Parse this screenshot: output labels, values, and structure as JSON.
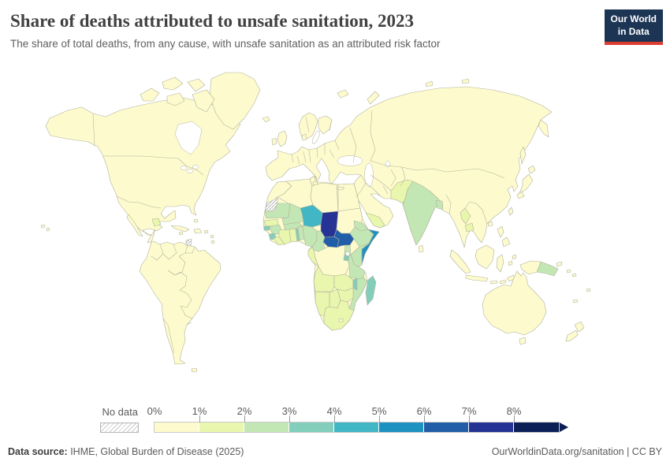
{
  "header": {
    "title": "Share of deaths attributed to unsafe sanitation, 2023",
    "subtitle": "The share of total deaths, from any cause, with unsafe sanitation as an attributed risk factor",
    "logo": {
      "line1": "Our World",
      "line2": "in Data",
      "bg_color": "#1d3554",
      "accent_color": "#dc3c31"
    }
  },
  "legend": {
    "no_data_label": "No data",
    "ticks": [
      "0%",
      "1%",
      "2%",
      "3%",
      "4%",
      "5%",
      "6%",
      "7%",
      "8%"
    ],
    "band_colors": [
      "#fdfbcd",
      "#e9f6ad",
      "#c3e7b4",
      "#82cebb",
      "#41b6c4",
      "#1d91c0",
      "#225ea8",
      "#253494",
      "#0b1f56"
    ],
    "arrow_color": "#0b1f56"
  },
  "footer": {
    "source_label": "Data source:",
    "source_text": " IHME, Global Burden of Disease (2025)",
    "right_text": "OurWorldinData.org/sanitation | CC BY"
  },
  "chart_data": {
    "type": "heatmap",
    "title": "Share of deaths attributed to unsafe sanitation, 2023",
    "subtitle": "The share of total deaths, from any cause, with unsafe sanitation as an attributed risk factor",
    "legend_bins": [
      "0-1%",
      "1-2%",
      "2-3%",
      "3-4%",
      "4-5%",
      "5-6%",
      "6-7%",
      "7-8%",
      "8%+"
    ],
    "legend_position": "bottom",
    "highlighted_values_bin_by_country": {
      "chad": "7-8%",
      "central-african-republic": "6-7%",
      "south-sudan": "6-7%",
      "somalia": "5-6%",
      "niger": "4-5%",
      "madagascar": "3-4%",
      "malawi": "3-4%",
      "sierra-leone": "3-4%",
      "togo": "3-4%",
      "guinea-bissau": "3-4%",
      "rwanda-burundi": "3-4%",
      "mauritania": "2-3%",
      "mali": "2-3%",
      "burkina-faso": "2-3%",
      "guinea": "2-3%",
      "benin": "2-3%",
      "nigeria": "2-3%",
      "cameroon": "2-3%",
      "eritrea": "2-3%",
      "ethiopia": "2-3%",
      "kenya": "2-3%",
      "uganda": "2-3%",
      "tanzania": "2-3%",
      "mozambique": "2-3%",
      "india": "2-3%",
      "bangladesh": "2-3%",
      "papua-new-guinea": "2-3%",
      "senegal": "1-2%",
      "liberia": "1-2%",
      "cote-divoire": "1-2%",
      "ghana": "1-2%",
      "congo-gabon": "1-2%",
      "angola": "1-2%",
      "zambia": "1-2%",
      "zimbabwe": "1-2%",
      "botswana": "1-2%",
      "namibia": "1-2%",
      "south-africa": "1-2%",
      "pakistan": "1-2%",
      "laos": "1-2%",
      "cambodia": "1-2%",
      "yemen": "1-2%",
      "guatemala": "1-2%",
      "rest-of-world": "0-1%",
      "western-sahara": "No data",
      "french-guiana": "No data"
    }
  },
  "map": {
    "default_band": 0,
    "border_color": "#b1b19e",
    "countries": {
      "chad": 7,
      "central-african-republic": 6,
      "south-sudan": 6,
      "somalia": 5,
      "niger": 4,
      "madagascar": 3,
      "malawi": 3,
      "sierra-leone": 3,
      "togo": 3,
      "guinea-bissau": 3,
      "rwanda-burundi": 3,
      "mauritania": 2,
      "mali": 2,
      "burkina-faso": 2,
      "guinea": 2,
      "benin": 2,
      "nigeria": 2,
      "cameroon": 2,
      "eritrea": 2,
      "ethiopia": 2,
      "kenya": 2,
      "uganda": 2,
      "tanzania": 2,
      "mozambique": 2,
      "india": 2,
      "bangladesh": 2,
      "papua-new-guinea": 2,
      "senegal": 1,
      "liberia": 1,
      "cote-divoire": 1,
      "ghana": 1,
      "congo-gabon": 1,
      "angola": 1,
      "zambia": 1,
      "zimbabwe": 1,
      "botswana": 1,
      "namibia": 1,
      "south-africa": 1,
      "pakistan": 1,
      "laos": 1,
      "cambodia": 1,
      "yemen": 1,
      "guatemala": 1,
      "democratic-republic-of-congo": 0,
      "sudan": 0,
      "egypt": 0,
      "libya": 0,
      "algeria": 0,
      "tunisia": 0,
      "morocco": 0,
      "lesotho": 0,
      "western-sahara": "no-data",
      "french-guiana": "no-data"
    }
  }
}
